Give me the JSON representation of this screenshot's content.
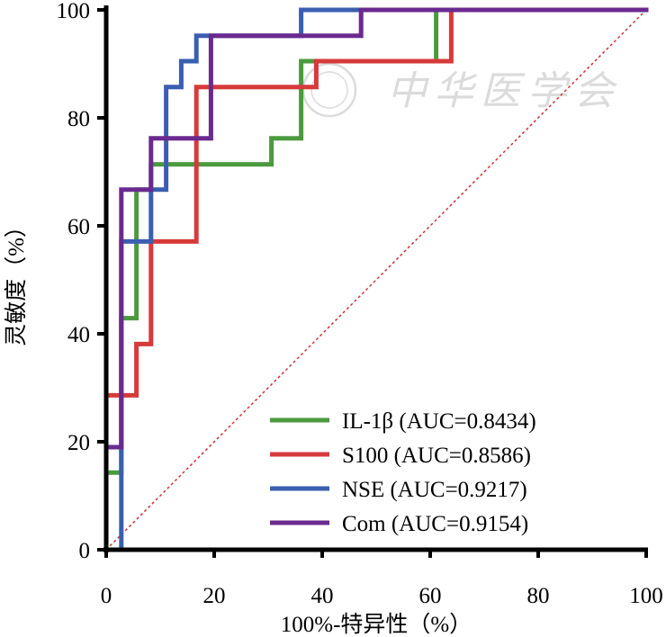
{
  "chart_data": {
    "type": "line",
    "title": "",
    "xlabel": "100%-特异性（%）",
    "ylabel": "灵敏度（%）",
    "xlim": [
      0,
      100
    ],
    "ylim": [
      0,
      100
    ],
    "x_ticks": [
      "0",
      "20",
      "40",
      "60",
      "80",
      "100"
    ],
    "y_ticks": [
      "0",
      "20",
      "40",
      "60",
      "80",
      "100"
    ],
    "grid": false,
    "legend_position": "bottom-right",
    "watermark": "中华医学会",
    "reference_line": {
      "name": "chance",
      "points": [
        [
          0,
          0
        ],
        [
          100,
          100
        ]
      ],
      "color": "#d03030"
    },
    "series": [
      {
        "name": "IL-1β (AUC=0.8434)",
        "color": "#4b9a3e",
        "points": [
          [
            0,
            0
          ],
          [
            0,
            14.3
          ],
          [
            2.8,
            14.3
          ],
          [
            2.8,
            42.9
          ],
          [
            5.6,
            42.9
          ],
          [
            5.6,
            66.7
          ],
          [
            8.3,
            66.7
          ],
          [
            8.3,
            71.4
          ],
          [
            30.6,
            71.4
          ],
          [
            30.6,
            76.2
          ],
          [
            36.1,
            76.2
          ],
          [
            36.1,
            90.5
          ],
          [
            61.1,
            90.5
          ],
          [
            61.1,
            100
          ],
          [
            100,
            100
          ]
        ]
      },
      {
        "name": "S100 (AUC=0.8586)",
        "color": "#d63a3a",
        "points": [
          [
            0,
            0
          ],
          [
            0,
            28.6
          ],
          [
            5.6,
            28.6
          ],
          [
            5.6,
            38.1
          ],
          [
            8.3,
            38.1
          ],
          [
            8.3,
            57.1
          ],
          [
            16.7,
            57.1
          ],
          [
            16.7,
            85.7
          ],
          [
            38.9,
            85.7
          ],
          [
            38.9,
            90.5
          ],
          [
            63.9,
            90.5
          ],
          [
            63.9,
            100
          ],
          [
            100,
            100
          ]
        ]
      },
      {
        "name": "NSE (AUC=0.9217)",
        "color": "#3a5fb0",
        "points": [
          [
            0,
            0
          ],
          [
            2.8,
            0
          ],
          [
            2.8,
            57.1
          ],
          [
            8.3,
            57.1
          ],
          [
            8.3,
            66.7
          ],
          [
            11.1,
            66.7
          ],
          [
            11.1,
            85.7
          ],
          [
            13.9,
            85.7
          ],
          [
            13.9,
            90.5
          ],
          [
            16.7,
            90.5
          ],
          [
            16.7,
            95.2
          ],
          [
            36.1,
            95.2
          ],
          [
            36.1,
            100
          ],
          [
            100,
            100
          ]
        ]
      },
      {
        "name": "Com (AUC=0.9154)",
        "color": "#6a2a8f",
        "points": [
          [
            0,
            0
          ],
          [
            0,
            19
          ],
          [
            2.8,
            19
          ],
          [
            2.8,
            66.7
          ],
          [
            8.3,
            66.7
          ],
          [
            8.3,
            76.2
          ],
          [
            19.4,
            76.2
          ],
          [
            19.4,
            95.2
          ],
          [
            47.2,
            95.2
          ],
          [
            47.2,
            100
          ],
          [
            100,
            100
          ]
        ]
      }
    ]
  }
}
